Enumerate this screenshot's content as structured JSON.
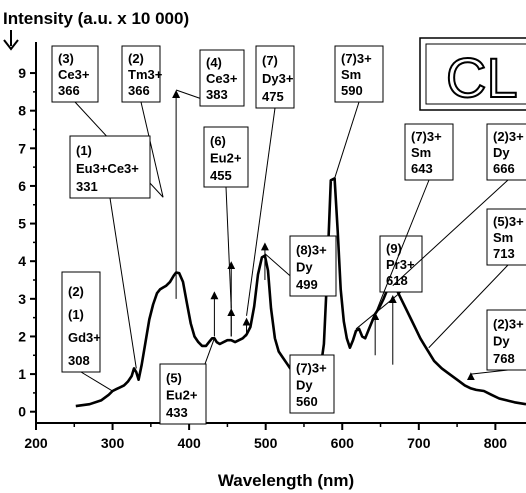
{
  "chart_data": {
    "type": "line",
    "title": "",
    "ylabel": "Intensity (a.u. x 10 000)",
    "xlabel": "Wavelength (nm)",
    "xlim": [
      200,
      840
    ],
    "ylim": [
      -0.3,
      9.4
    ],
    "x_ticks": [
      "200",
      "300",
      "400",
      "500",
      "600",
      "700",
      "800"
    ],
    "y_ticks": [
      "0",
      "1",
      "2",
      "3",
      "4",
      "5",
      "6",
      "7",
      "8",
      "9"
    ],
    "grid": false,
    "badge": "CL",
    "series": [
      {
        "x": [
          252,
          270,
          285,
          295,
          300,
          305,
          310,
          315,
          320,
          325,
          328,
          331,
          334,
          338,
          343,
          348,
          353,
          358,
          362,
          366,
          370,
          375,
          380,
          383,
          387,
          392,
          397,
          402,
          407,
          412,
          417,
          422,
          426,
          430,
          433,
          436,
          440,
          445,
          450,
          455,
          460,
          465,
          470,
          475,
          480,
          485,
          490,
          495,
          499,
          503,
          507,
          512,
          517,
          522,
          527,
          532,
          537,
          542,
          547,
          552,
          557,
          560,
          564,
          568,
          572,
          576,
          580,
          585,
          590,
          594,
          598,
          602,
          606,
          610,
          614,
          618,
          622,
          626,
          630,
          635,
          640,
          643,
          648,
          654,
          660,
          666,
          672,
          678,
          684,
          690,
          696,
          702,
          708,
          714,
          720,
          730,
          740,
          750,
          760,
          768,
          775,
          785,
          795,
          805,
          815,
          825,
          840
        ],
        "y": [
          0.15,
          0.2,
          0.3,
          0.45,
          0.55,
          0.6,
          0.65,
          0.7,
          0.8,
          0.95,
          1.15,
          1.05,
          0.85,
          1.25,
          1.85,
          2.45,
          2.85,
          3.15,
          3.25,
          3.3,
          3.35,
          3.45,
          3.62,
          3.7,
          3.68,
          3.45,
          2.9,
          2.35,
          2.0,
          1.85,
          1.75,
          1.75,
          1.85,
          1.95,
          1.95,
          1.85,
          1.8,
          1.85,
          1.9,
          1.9,
          1.85,
          1.9,
          1.95,
          2.05,
          2.25,
          2.8,
          3.65,
          4.1,
          4.15,
          3.75,
          2.75,
          1.95,
          1.6,
          1.45,
          1.3,
          1.15,
          1.05,
          1.0,
          0.98,
          1.0,
          1.05,
          1.1,
          1.0,
          1.05,
          1.2,
          1.8,
          3.5,
          6.15,
          6.2,
          4.8,
          3.25,
          2.4,
          1.95,
          1.7,
          1.9,
          2.15,
          2.2,
          2.0,
          1.95,
          2.2,
          2.45,
          2.6,
          2.75,
          3.0,
          3.3,
          3.35,
          3.2,
          2.95,
          2.7,
          2.45,
          2.2,
          1.95,
          1.75,
          1.55,
          1.35,
          1.15,
          1.0,
          0.85,
          0.7,
          0.62,
          0.58,
          0.55,
          0.45,
          0.35,
          0.3,
          0.25,
          0.2
        ]
      }
    ],
    "arrows": [
      {
        "x": 383,
        "y_from": 3.0,
        "y_to": 8.55
      },
      {
        "x": 433,
        "y_from": 2.0,
        "y_to": 3.2
      },
      {
        "x": 455,
        "y_from": 2.0,
        "y_to": 4.0
      },
      {
        "x": 455,
        "y_from": 2.0,
        "y_to": 2.75
      },
      {
        "x": 475,
        "y_from": 2.0,
        "y_to": 2.5
      },
      {
        "x": 499,
        "y_from": 3.5,
        "y_to": 4.5
      },
      {
        "x": 560,
        "y_from": 1.0,
        "y_to": 1.25
      },
      {
        "x": 643,
        "y_from": 1.5,
        "y_to": 2.65
      },
      {
        "x": 666,
        "y_from": 1.25,
        "y_to": 3.1
      },
      {
        "x": 768,
        "y_from": 0.85,
        "y_to": 1.05
      }
    ],
    "annotations": [
      {
        "lines": [
          "(3)",
          "Ce3+",
          "366"
        ],
        "tip_x": 366,
        "tip_y": 5.7
      },
      {
        "lines": [
          "(2)",
          "Tm3+",
          "366"
        ],
        "tip_x": 366,
        "tip_y": 5.7
      },
      {
        "lines": [
          "(4)",
          "Ce3+",
          "383"
        ],
        "tip_x": 383,
        "tip_y": 8.55
      },
      {
        "lines": [
          "(7)",
          "Dy3+",
          "475"
        ],
        "tip_x": 475,
        "tip_y": 2.55
      },
      {
        "lines": [
          "(7)3+",
          "Sm",
          "590"
        ],
        "tip_x": 590,
        "tip_y": 6.2
      },
      {
        "lines": [
          "(1)",
          "Eu3+Ce3+",
          "331"
        ],
        "tip_x": 331,
        "tip_y": 1.15
      },
      {
        "lines": [
          "(6)",
          "Eu2+",
          "455"
        ],
        "tip_x": 455,
        "tip_y": 2.75
      },
      {
        "lines": [
          "(8)3+",
          "Dy",
          "499"
        ],
        "tip_x": 499,
        "tip_y": 4.2
      },
      {
        "lines": [
          "(9)",
          "Pr3+",
          "618"
        ],
        "tip_x": 618,
        "tip_y": 2.2
      },
      {
        "lines": [
          "(7)3+",
          "Sm",
          "643"
        ],
        "tip_x": 643,
        "tip_y": 2.6
      },
      {
        "lines": [
          "(2)3+",
          "Dy",
          "666"
        ],
        "tip_x": 666,
        "tip_y": 3.35
      },
      {
        "lines": [
          "(5)3+",
          "Sm",
          "713"
        ],
        "tip_x": 713,
        "tip_y": 1.7
      },
      {
        "lines": [
          "(2)3+",
          "Dy",
          "768"
        ],
        "tip_x": 768,
        "tip_y": 1.0
      },
      {
        "lines": [
          "(2)",
          "(1)",
          "Gd3+",
          "308"
        ],
        "tip_x": 300,
        "tip_y": 0.55
      },
      {
        "lines": [
          "(7)3+",
          "Dy",
          "560"
        ],
        "tip_x": 560,
        "tip_y": 1.05
      },
      {
        "lines": [
          "(5)",
          "Eu2+",
          "433"
        ],
        "tip_x": 433,
        "tip_y": 1.95
      }
    ]
  }
}
